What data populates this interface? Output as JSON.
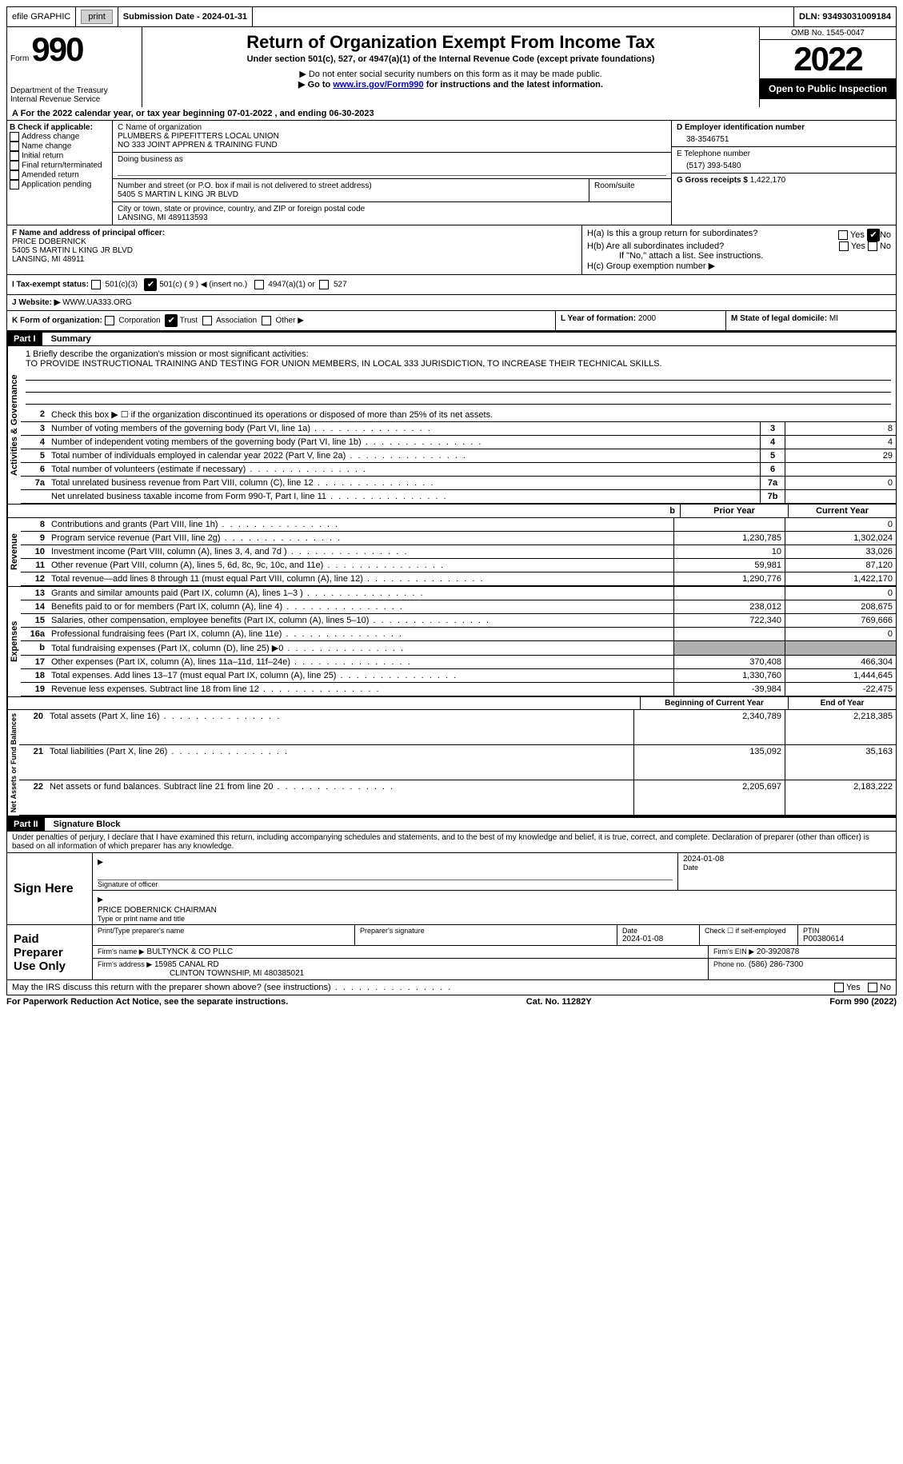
{
  "topbar": {
    "efile_label": "efile GRAPHIC",
    "print_btn": "print",
    "submission_label": "Submission Date - 2024-01-31",
    "dln_label": "DLN: 93493031009184"
  },
  "header": {
    "form_label": "Form",
    "form_number": "990",
    "dept": "Department of the Treasury",
    "irs": "Internal Revenue Service",
    "title": "Return of Organization Exempt From Income Tax",
    "subtitle": "Under section 501(c), 527, or 4947(a)(1) of the Internal Revenue Code (except private foundations)",
    "note1": "▶ Do not enter social security numbers on this form as it may be made public.",
    "note2_pre": "▶ Go to ",
    "note2_link": "www.irs.gov/Form990",
    "note2_post": " for instructions and the latest information.",
    "omb": "OMB No. 1545-0047",
    "year": "2022",
    "open": "Open to Public Inspection"
  },
  "period": {
    "label": "A For the 2022 calendar year, or tax year beginning ",
    "begin": "07-01-2022",
    "mid": "   , and ending ",
    "end": "06-30-2023"
  },
  "sectionB": {
    "label": "B Check if applicable:",
    "opts": [
      "Address change",
      "Name change",
      "Initial return",
      "Final return/terminated",
      "Amended return",
      "Application pending"
    ]
  },
  "sectionC": {
    "name_label": "C Name of organization",
    "name1": "PLUMBERS & PIPEFITTERS LOCAL UNION",
    "name2": "NO 333 JOINT APPREN & TRAINING FUND",
    "dba_label": "Doing business as",
    "street_label": "Number and street (or P.O. box if mail is not delivered to street address)",
    "room_label": "Room/suite",
    "street": "5405 S MARTIN L KING JR BLVD",
    "city_label": "City or town, state or province, country, and ZIP or foreign postal code",
    "city": "LANSING, MI  489113593"
  },
  "sectionD": {
    "ein_label": "D Employer identification number",
    "ein": "38-3546751",
    "phone_label": "E Telephone number",
    "phone": "(517) 393-5480",
    "gross_label": "G Gross receipts $",
    "gross": "1,422,170"
  },
  "sectionF": {
    "label": "F  Name and address of principal officer:",
    "name": "PRICE DOBERNICK",
    "street": "5405 S MARTIN L KING JR BLVD",
    "city": "LANSING, MI  48911"
  },
  "sectionH": {
    "a_label": "H(a)  Is this a group return for subordinates?",
    "yes": "Yes",
    "no": "No",
    "b_label": "H(b)  Are all subordinates included?",
    "b_note": "If \"No,\" attach a list. See instructions.",
    "c_label": "H(c)  Group exemption number ▶"
  },
  "sectionI": {
    "label": "I    Tax-exempt status:",
    "opt1": "501(c)(3)",
    "opt2": "501(c) ( 9 ) ◀ (insert no.)",
    "opt3": "4947(a)(1) or",
    "opt4": "527"
  },
  "sectionJ": {
    "label": "J   Website: ▶",
    "value": "WWW.UA333.ORG"
  },
  "sectionK": {
    "label": "K Form of organization:",
    "opts": [
      "Corporation",
      "Trust",
      "Association",
      "Other ▶"
    ]
  },
  "sectionL": {
    "label": "L Year of formation: ",
    "value": "2000"
  },
  "sectionM": {
    "label": "M State of legal domicile: ",
    "value": "MI"
  },
  "partI": {
    "header": "Part I",
    "title": "Summary",
    "vlabels": {
      "ag": "Activities & Governance",
      "rev": "Revenue",
      "exp": "Expenses",
      "nafb": "Net Assets or Fund Balances"
    },
    "mission_label": "1   Briefly describe the organization's mission or most significant activities:",
    "mission": "TO PROVIDE INSTRUCTIONAL TRAINING AND TESTING FOR UNION MEMBERS, IN LOCAL 333 JURISDICTION, TO INCREASE THEIR TECHNICAL SKILLS.",
    "line2": "Check this box ▶ ☐  if the organization discontinued its operations or disposed of more than 25% of its net assets.",
    "lines_small": [
      {
        "n": "3",
        "t": "Number of voting members of the governing body (Part VI, line 1a)",
        "k": "3",
        "v": "8"
      },
      {
        "n": "4",
        "t": "Number of independent voting members of the governing body (Part VI, line 1b)",
        "k": "4",
        "v": "4"
      },
      {
        "n": "5",
        "t": "Total number of individuals employed in calendar year 2022 (Part V, line 2a)",
        "k": "5",
        "v": "29"
      },
      {
        "n": "6",
        "t": "Total number of volunteers (estimate if necessary)",
        "k": "6",
        "v": ""
      },
      {
        "n": "7a",
        "t": "Total unrelated business revenue from Part VIII, column (C), line 12",
        "k": "7a",
        "v": "0"
      },
      {
        "n": "",
        "t": "Net unrelated business taxable income from Form 990-T, Part I, line 11",
        "k": "7b",
        "v": ""
      }
    ],
    "col_headers": {
      "prior": "Prior Year",
      "current": "Current Year",
      "boy": "Beginning of Current Year",
      "eoy": "End of Year"
    },
    "rev_rows": [
      {
        "n": "8",
        "t": "Contributions and grants (Part VIII, line 1h)",
        "p": "",
        "c": "0"
      },
      {
        "n": "9",
        "t": "Program service revenue (Part VIII, line 2g)",
        "p": "1,230,785",
        "c": "1,302,024"
      },
      {
        "n": "10",
        "t": "Investment income (Part VIII, column (A), lines 3, 4, and 7d )",
        "p": "10",
        "c": "33,026"
      },
      {
        "n": "11",
        "t": "Other revenue (Part VIII, column (A), lines 5, 6d, 8c, 9c, 10c, and 11e)",
        "p": "59,981",
        "c": "87,120"
      },
      {
        "n": "12",
        "t": "Total revenue—add lines 8 through 11 (must equal Part VIII, column (A), line 12)",
        "p": "1,290,776",
        "c": "1,422,170"
      }
    ],
    "exp_rows": [
      {
        "n": "13",
        "t": "Grants and similar amounts paid (Part IX, column (A), lines 1–3 )",
        "p": "",
        "c": "0"
      },
      {
        "n": "14",
        "t": "Benefits paid to or for members (Part IX, column (A), line 4)",
        "p": "238,012",
        "c": "208,675"
      },
      {
        "n": "15",
        "t": "Salaries, other compensation, employee benefits (Part IX, column (A), lines 5–10)",
        "p": "722,340",
        "c": "769,666"
      },
      {
        "n": "16a",
        "t": "Professional fundraising fees (Part IX, column (A), line 11e)",
        "p": "",
        "c": "0"
      },
      {
        "n": "b",
        "t": "Total fundraising expenses (Part IX, column (D), line 25) ▶0",
        "p": "shaded",
        "c": "shaded"
      },
      {
        "n": "17",
        "t": "Other expenses (Part IX, column (A), lines 11a–11d, 11f–24e)",
        "p": "370,408",
        "c": "466,304"
      },
      {
        "n": "18",
        "t": "Total expenses. Add lines 13–17 (must equal Part IX, column (A), line 25)",
        "p": "1,330,760",
        "c": "1,444,645"
      },
      {
        "n": "19",
        "t": "Revenue less expenses. Subtract line 18 from line 12",
        "p": "-39,984",
        "c": "-22,475"
      }
    ],
    "na_rows": [
      {
        "n": "20",
        "t": "Total assets (Part X, line 16)",
        "p": "2,340,789",
        "c": "2,218,385"
      },
      {
        "n": "21",
        "t": "Total liabilities (Part X, line 26)",
        "p": "135,092",
        "c": "35,163"
      },
      {
        "n": "22",
        "t": "Net assets or fund balances. Subtract line 21 from line 20",
        "p": "2,205,697",
        "c": "2,183,222"
      }
    ]
  },
  "partII": {
    "header": "Part II",
    "title": "Signature Block",
    "decl": "Under penalties of perjury, I declare that I have examined this return, including accompanying schedules and statements, and to the best of my knowledge and belief, it is true, correct, and complete. Declaration of preparer (other than officer) is based on all information of which preparer has any knowledge.",
    "sign_here": "Sign Here",
    "sig_officer": "Signature of officer",
    "sig_date": "2024-01-08",
    "date_label": "Date",
    "officer_name": "PRICE DOBERNICK  CHAIRMAN",
    "officer_sub": "Type or print name and title",
    "paid": "Paid Preparer Use Only",
    "prep_name_label": "Print/Type preparer's name",
    "prep_sig_label": "Preparer's signature",
    "prep_date_label": "Date",
    "prep_date": "2024-01-08",
    "check_self": "Check ☐ if self-employed",
    "ptin_label": "PTIN",
    "ptin": "P00380614",
    "firm_name_label": "Firm's name      ▶",
    "firm_name": "BULTYNCK & CO PLLC",
    "firm_ein_label": "Firm's EIN ▶",
    "firm_ein": "20-3920878",
    "firm_addr_label": "Firm's address ▶",
    "firm_addr1": "15985 CANAL RD",
    "firm_addr2": "CLINTON TOWNSHIP, MI  480385021",
    "firm_phone_label": "Phone no.",
    "firm_phone": "(586) 286-7300",
    "discuss": "May the IRS discuss this return with the preparer shown above? (see instructions)"
  },
  "footer": {
    "pra": "For Paperwork Reduction Act Notice, see the separate instructions.",
    "cat": "Cat. No. 11282Y",
    "form": "Form 990 (2022)"
  }
}
